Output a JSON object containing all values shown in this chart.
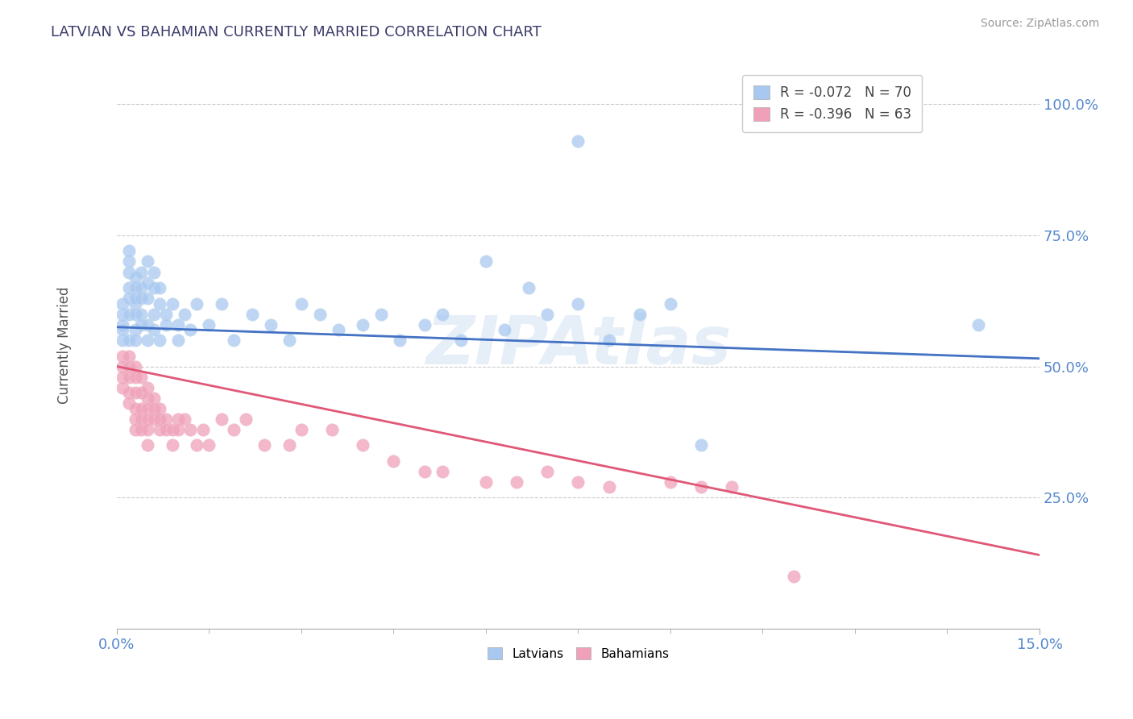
{
  "title": "LATVIAN VS BAHAMIAN CURRENTLY MARRIED CORRELATION CHART",
  "source_text": "Source: ZipAtlas.com",
  "ylabel": "Currently Married",
  "xlim": [
    0.0,
    0.15
  ],
  "ylim": [
    0.0,
    1.08
  ],
  "xtick_positions": [
    0.0,
    0.15
  ],
  "xtick_labels": [
    "0.0%",
    "15.0%"
  ],
  "ytick_positions": [
    0.25,
    0.5,
    0.75,
    1.0
  ],
  "ytick_labels": [
    "25.0%",
    "50.0%",
    "75.0%",
    "100.0%"
  ],
  "latvian_color": "#a8c8f0",
  "bahamian_color": "#f0a0b8",
  "line_latvian_color": "#4472c4",
  "line_bahamian_color": "#e05878",
  "legend_line1": "R = -0.072   N = 70",
  "legend_line2": "R = -0.396   N = 63",
  "watermark": "ZIPAtlas",
  "lat_line_x0": 0.0,
  "lat_line_y0": 0.575,
  "lat_line_x1": 0.15,
  "lat_line_y1": 0.515,
  "bah_line_x0": 0.0,
  "bah_line_y0": 0.5,
  "bah_line_x1": 0.15,
  "bah_line_y1": 0.14,
  "latvians_x": [
    0.001,
    0.001,
    0.001,
    0.001,
    0.001,
    0.002,
    0.002,
    0.002,
    0.002,
    0.002,
    0.002,
    0.002,
    0.003,
    0.003,
    0.003,
    0.003,
    0.003,
    0.003,
    0.003,
    0.004,
    0.004,
    0.004,
    0.004,
    0.004,
    0.005,
    0.005,
    0.005,
    0.005,
    0.005,
    0.006,
    0.006,
    0.006,
    0.006,
    0.007,
    0.007,
    0.007,
    0.008,
    0.008,
    0.009,
    0.01,
    0.01,
    0.011,
    0.012,
    0.013,
    0.015,
    0.017,
    0.019,
    0.022,
    0.025,
    0.028,
    0.03,
    0.033,
    0.036,
    0.04,
    0.043,
    0.046,
    0.05,
    0.053,
    0.056,
    0.06,
    0.063,
    0.067,
    0.07,
    0.075,
    0.08,
    0.085,
    0.09,
    0.095,
    0.14,
    0.075
  ],
  "latvians_y": [
    0.6,
    0.58,
    0.55,
    0.62,
    0.57,
    0.65,
    0.63,
    0.55,
    0.7,
    0.68,
    0.72,
    0.6,
    0.62,
    0.65,
    0.67,
    0.6,
    0.57,
    0.63,
    0.55,
    0.65,
    0.63,
    0.6,
    0.68,
    0.58,
    0.7,
    0.66,
    0.58,
    0.63,
    0.55,
    0.65,
    0.6,
    0.57,
    0.68,
    0.62,
    0.65,
    0.55,
    0.6,
    0.58,
    0.62,
    0.58,
    0.55,
    0.6,
    0.57,
    0.62,
    0.58,
    0.62,
    0.55,
    0.6,
    0.58,
    0.55,
    0.62,
    0.6,
    0.57,
    0.58,
    0.6,
    0.55,
    0.58,
    0.6,
    0.55,
    0.7,
    0.57,
    0.65,
    0.6,
    0.62,
    0.55,
    0.6,
    0.62,
    0.35,
    0.58,
    0.93
  ],
  "bahamians_x": [
    0.001,
    0.001,
    0.001,
    0.001,
    0.002,
    0.002,
    0.002,
    0.002,
    0.002,
    0.003,
    0.003,
    0.003,
    0.003,
    0.003,
    0.003,
    0.004,
    0.004,
    0.004,
    0.004,
    0.004,
    0.005,
    0.005,
    0.005,
    0.005,
    0.005,
    0.005,
    0.006,
    0.006,
    0.006,
    0.007,
    0.007,
    0.007,
    0.008,
    0.008,
    0.009,
    0.009,
    0.01,
    0.01,
    0.011,
    0.012,
    0.013,
    0.014,
    0.015,
    0.017,
    0.019,
    0.021,
    0.024,
    0.028,
    0.03,
    0.035,
    0.04,
    0.045,
    0.05,
    0.053,
    0.06,
    0.065,
    0.07,
    0.075,
    0.08,
    0.09,
    0.095,
    0.1,
    0.11
  ],
  "bahamians_y": [
    0.52,
    0.5,
    0.48,
    0.46,
    0.52,
    0.5,
    0.48,
    0.45,
    0.43,
    0.5,
    0.48,
    0.45,
    0.42,
    0.4,
    0.38,
    0.48,
    0.45,
    0.42,
    0.4,
    0.38,
    0.46,
    0.44,
    0.42,
    0.4,
    0.38,
    0.35,
    0.44,
    0.42,
    0.4,
    0.42,
    0.4,
    0.38,
    0.4,
    0.38,
    0.38,
    0.35,
    0.4,
    0.38,
    0.4,
    0.38,
    0.35,
    0.38,
    0.35,
    0.4,
    0.38,
    0.4,
    0.35,
    0.35,
    0.38,
    0.38,
    0.35,
    0.32,
    0.3,
    0.3,
    0.28,
    0.28,
    0.3,
    0.28,
    0.27,
    0.28,
    0.27,
    0.27,
    0.1
  ]
}
